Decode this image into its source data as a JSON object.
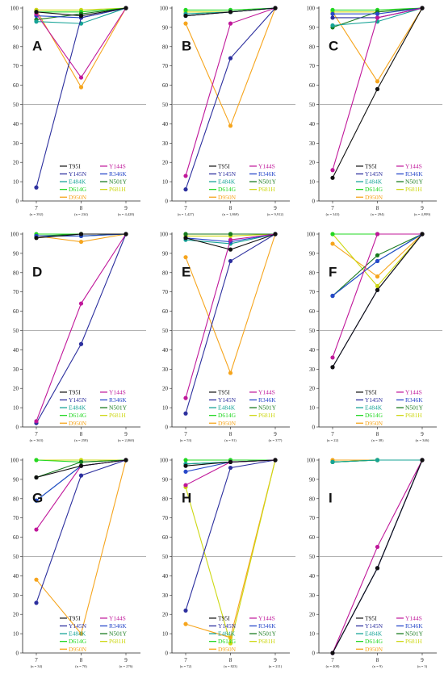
{
  "colors": {
    "T95I": "#111111",
    "Y144S": "#c0179a",
    "Y145N": "#2c2f9e",
    "R346K": "#2748c9",
    "E484K": "#16a396",
    "N501Y": "#177a1d",
    "D614G": "#22d822",
    "P681H": "#cdd813",
    "D950N": "#f6a51d"
  },
  "legend": {
    "left": [
      "T95I",
      "Y145N",
      "E484K",
      "D614G",
      "D950N"
    ],
    "right": [
      "Y144S",
      "R346K",
      "N501Y",
      "P681H"
    ]
  },
  "chart_data": [
    {
      "type": "line",
      "panel": "A",
      "x": [
        "7",
        "8",
        "9"
      ],
      "n": [
        "(n = 392)",
        "(n = 234)",
        "(n = 4,428)"
      ],
      "yticks": [
        0,
        10,
        20,
        30,
        40,
        50,
        60,
        70,
        80,
        90,
        100
      ],
      "ylim": [
        0,
        100
      ],
      "series": [
        {
          "name": "T95I",
          "values": [
            98,
            96,
            100
          ]
        },
        {
          "name": "Y144S",
          "values": [
            97,
            64,
            100
          ]
        },
        {
          "name": "Y145N",
          "values": [
            7,
            95,
            100
          ]
        },
        {
          "name": "R346K",
          "values": [
            96,
            95,
            100
          ]
        },
        {
          "name": "E484K",
          "values": [
            93,
            92,
            100
          ]
        },
        {
          "name": "N501Y",
          "values": [
            94,
            97,
            100
          ]
        },
        {
          "name": "D614G",
          "values": [
            98,
            98,
            100
          ]
        },
        {
          "name": "P681H",
          "values": [
            99,
            99,
            100
          ]
        },
        {
          "name": "D950N",
          "values": [
            99,
            59,
            100
          ]
        }
      ]
    },
    {
      "type": "line",
      "panel": "B",
      "x": [
        "7",
        "8",
        "9"
      ],
      "n": [
        "(n = 1,427)",
        "(n = 1,869)",
        "(n = 9,912)"
      ],
      "yticks": [
        0,
        10,
        20,
        30,
        40,
        50,
        60,
        70,
        80,
        90,
        100
      ],
      "ylim": [
        0,
        100
      ],
      "series": [
        {
          "name": "T95I",
          "values": [
            96,
            98,
            100
          ]
        },
        {
          "name": "Y144S",
          "values": [
            13,
            92,
            100
          ]
        },
        {
          "name": "Y145N",
          "values": [
            6,
            74,
            100
          ]
        },
        {
          "name": "R346K",
          "values": [
            96,
            98,
            100
          ]
        },
        {
          "name": "E484K",
          "values": [
            97,
            98,
            100
          ]
        },
        {
          "name": "N501Y",
          "values": [
            96,
            98,
            100
          ]
        },
        {
          "name": "D614G",
          "values": [
            99,
            99,
            100
          ]
        },
        {
          "name": "P681H",
          "values": [
            98,
            98,
            100
          ]
        },
        {
          "name": "D950N",
          "values": [
            92,
            39,
            100
          ]
        }
      ]
    },
    {
      "type": "line",
      "panel": "C",
      "x": [
        "7",
        "8",
        "9"
      ],
      "n": [
        "(n = 343)",
        "(n = 294)",
        "(n = 4,999)"
      ],
      "yticks": [
        0,
        10,
        20,
        30,
        40,
        50,
        60,
        70,
        80,
        90,
        100
      ],
      "ylim": [
        0,
        100
      ],
      "series": [
        {
          "name": "T95I",
          "values": [
            12,
            58,
            100
          ]
        },
        {
          "name": "Y144S",
          "values": [
            16,
            95,
            100
          ]
        },
        {
          "name": "Y145N",
          "values": [
            95,
            95,
            100
          ]
        },
        {
          "name": "R346K",
          "values": [
            97,
            97,
            100
          ]
        },
        {
          "name": "E484K",
          "values": [
            91,
            93,
            100
          ]
        },
        {
          "name": "N501Y",
          "values": [
            90,
            98,
            100
          ]
        },
        {
          "name": "D614G",
          "values": [
            99,
            99,
            100
          ]
        },
        {
          "name": "P681H",
          "values": [
            98,
            98,
            100
          ]
        },
        {
          "name": "D950N",
          "values": [
            98,
            62,
            100
          ]
        }
      ]
    },
    {
      "type": "line",
      "panel": "D",
      "x": [
        "7",
        "8",
        "9"
      ],
      "n": [
        "(n = 363)",
        "(n = 258)",
        "(n = 2,060)"
      ],
      "yticks": [
        0,
        10,
        20,
        30,
        40,
        50,
        60,
        70,
        80,
        90,
        100
      ],
      "ylim": [
        0,
        100
      ],
      "series": [
        {
          "name": "T95I",
          "values": [
            98,
            100,
            100
          ]
        },
        {
          "name": "Y144S",
          "values": [
            3,
            64,
            100
          ]
        },
        {
          "name": "Y145N",
          "values": [
            2,
            43,
            100
          ]
        },
        {
          "name": "R346K",
          "values": [
            99,
            99,
            100
          ]
        },
        {
          "name": "E484K",
          "values": [
            99,
            99,
            100
          ]
        },
        {
          "name": "N501Y",
          "values": [
            99,
            100,
            100
          ]
        },
        {
          "name": "D614G",
          "values": [
            100,
            100,
            100
          ]
        },
        {
          "name": "P681H",
          "values": [
            99,
            99,
            100
          ]
        },
        {
          "name": "D950N",
          "values": [
            99,
            96,
            100
          ]
        }
      ]
    },
    {
      "type": "line",
      "panel": "E",
      "x": [
        "7",
        "8",
        "9"
      ],
      "n": [
        "(n = 53)",
        "(n = 91)",
        "(n = 377)"
      ],
      "yticks": [
        0,
        10,
        20,
        30,
        40,
        50,
        60,
        70,
        80,
        90,
        100
      ],
      "ylim": [
        0,
        100
      ],
      "series": [
        {
          "name": "T95I",
          "values": [
            98,
            92,
            100
          ]
        },
        {
          "name": "Y144S",
          "values": [
            15,
            97,
            100
          ]
        },
        {
          "name": "Y145N",
          "values": [
            7,
            86,
            100
          ]
        },
        {
          "name": "R346K",
          "values": [
            98,
            96,
            100
          ]
        },
        {
          "name": "E484K",
          "values": [
            97,
            95,
            100
          ]
        },
        {
          "name": "N501Y",
          "values": [
            100,
            100,
            100
          ]
        },
        {
          "name": "D614G",
          "values": [
            100,
            100,
            100
          ]
        },
        {
          "name": "P681H",
          "values": [
            99,
            99,
            100
          ]
        },
        {
          "name": "D950N",
          "values": [
            88,
            28,
            100
          ]
        }
      ]
    },
    {
      "type": "line",
      "panel": "F",
      "x": [
        "7",
        "8",
        "9"
      ],
      "n": [
        "(n = 22)",
        "(n = 38)",
        "(n = 346)"
      ],
      "yticks": [
        0,
        10,
        20,
        30,
        40,
        50,
        60,
        70,
        80,
        90,
        100
      ],
      "ylim": [
        0,
        100
      ],
      "series": [
        {
          "name": "T95I",
          "values": [
            31,
            71,
            100
          ]
        },
        {
          "name": "Y144S",
          "values": [
            36,
            100,
            100
          ]
        },
        {
          "name": "Y145N",
          "values": [
            31,
            71,
            100
          ]
        },
        {
          "name": "R346K",
          "values": [
            68,
            86,
            100
          ]
        },
        {
          "name": "E484K",
          "values": [
            68,
            86,
            100
          ]
        },
        {
          "name": "N501Y",
          "values": [
            68,
            89,
            100
          ]
        },
        {
          "name": "D614G",
          "values": [
            100,
            100,
            100
          ]
        },
        {
          "name": "P681H",
          "values": [
            100,
            73,
            100
          ]
        },
        {
          "name": "D950N",
          "values": [
            95,
            78,
            100
          ]
        }
      ]
    },
    {
      "type": "line",
      "panel": "G",
      "x": [
        "7",
        "8",
        "9"
      ],
      "n": [
        "(n = 34)",
        "(n = 70)",
        "(n = 276)"
      ],
      "yticks": [
        0,
        10,
        20,
        30,
        40,
        50,
        60,
        70,
        80,
        90,
        100
      ],
      "ylim": [
        0,
        100
      ],
      "series": [
        {
          "name": "T95I",
          "values": [
            91,
            97,
            100
          ]
        },
        {
          "name": "Y144S",
          "values": [
            64,
            97,
            100
          ]
        },
        {
          "name": "Y145N",
          "values": [
            26,
            92,
            100
          ]
        },
        {
          "name": "R346K",
          "values": [
            79,
            97,
            100
          ]
        },
        {
          "name": "E484K",
          "values": [
            79,
            97,
            100
          ]
        },
        {
          "name": "N501Y",
          "values": [
            91,
            99,
            100
          ]
        },
        {
          "name": "D614G",
          "values": [
            100,
            99,
            100
          ]
        },
        {
          "name": "P681H",
          "values": [
            100,
            100,
            100
          ]
        },
        {
          "name": "D950N",
          "values": [
            38,
            10,
            100
          ]
        }
      ]
    },
    {
      "type": "line",
      "panel": "H",
      "x": [
        "7",
        "8",
        "9"
      ],
      "n": [
        "(n = 72)",
        "(n = 823)",
        "(n = 211)"
      ],
      "yticks": [
        0,
        10,
        20,
        30,
        40,
        50,
        60,
        70,
        80,
        90,
        100
      ],
      "ylim": [
        0,
        100
      ],
      "series": [
        {
          "name": "T95I",
          "values": [
            97,
            99,
            100
          ]
        },
        {
          "name": "Y144S",
          "values": [
            87,
            99,
            100
          ]
        },
        {
          "name": "Y145N",
          "values": [
            22,
            96,
            100
          ]
        },
        {
          "name": "R346K",
          "values": [
            94,
            99,
            100
          ]
        },
        {
          "name": "E484K",
          "values": [
            98,
            99,
            100
          ]
        },
        {
          "name": "N501Y",
          "values": [
            98,
            99,
            100
          ]
        },
        {
          "name": "D614G",
          "values": [
            100,
            100,
            100
          ]
        },
        {
          "name": "P681H",
          "values": [
            86,
            5,
            100
          ]
        },
        {
          "name": "D950N",
          "values": [
            15,
            8,
            100
          ]
        }
      ]
    },
    {
      "type": "line",
      "panel": "I",
      "x": [
        "7",
        "8",
        "9"
      ],
      "n": [
        "(n = 408)",
        "(n = 9)",
        "(n = 3)"
      ],
      "yticks": [
        0,
        10,
        20,
        30,
        40,
        50,
        60,
        70,
        80,
        90,
        100
      ],
      "ylim": [
        0,
        100
      ],
      "series": [
        {
          "name": "T95I",
          "values": [
            0,
            44,
            100
          ]
        },
        {
          "name": "Y144S",
          "values": [
            0,
            55,
            100
          ]
        },
        {
          "name": "Y145N",
          "values": [
            0,
            44,
            100
          ]
        },
        {
          "name": "R346K",
          "values": [
            0,
            44,
            100
          ]
        },
        {
          "name": "E484K",
          "values": [
            99,
            100,
            100
          ]
        },
        {
          "name": "N501Y",
          "values": [
            99,
            100,
            100
          ]
        },
        {
          "name": "D614G",
          "values": [
            99,
            100,
            100
          ]
        },
        {
          "name": "P681H",
          "values": [
            99,
            100,
            100
          ]
        },
        {
          "name": "D950N",
          "values": [
            100,
            100,
            100
          ]
        }
      ]
    }
  ]
}
